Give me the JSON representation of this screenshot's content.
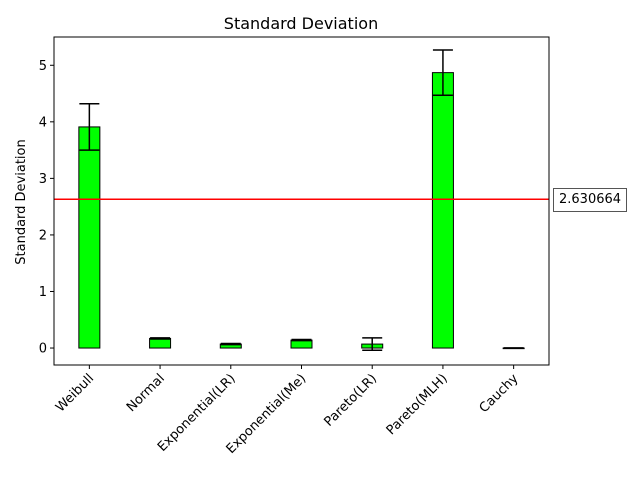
{
  "chart_data": {
    "type": "bar",
    "title": "Standard Deviation",
    "xlabel": "",
    "ylabel": "Standard Deviation",
    "categories": [
      "Weibull",
      "Normal",
      "Exponential(LR)",
      "Exponential(Me)",
      "Pareto(LR)",
      "Pareto(MLH)",
      "Cauchy"
    ],
    "values": [
      3.91,
      0.17,
      0.07,
      0.14,
      0.07,
      4.87,
      0.0
    ],
    "error": [
      0.41,
      0.01,
      0.01,
      0.01,
      0.11,
      0.4,
      0.0
    ],
    "ylim": [
      -0.3,
      5.5
    ],
    "yticks": [
      "0",
      "1",
      "2",
      "3",
      "4",
      "5"
    ],
    "reference_line": {
      "value": 2.630664,
      "label": "2.630664",
      "color": "#ff0000"
    },
    "bar_color": "#00ff00",
    "edge_color": "#000000",
    "grid": false,
    "legend": "none"
  }
}
